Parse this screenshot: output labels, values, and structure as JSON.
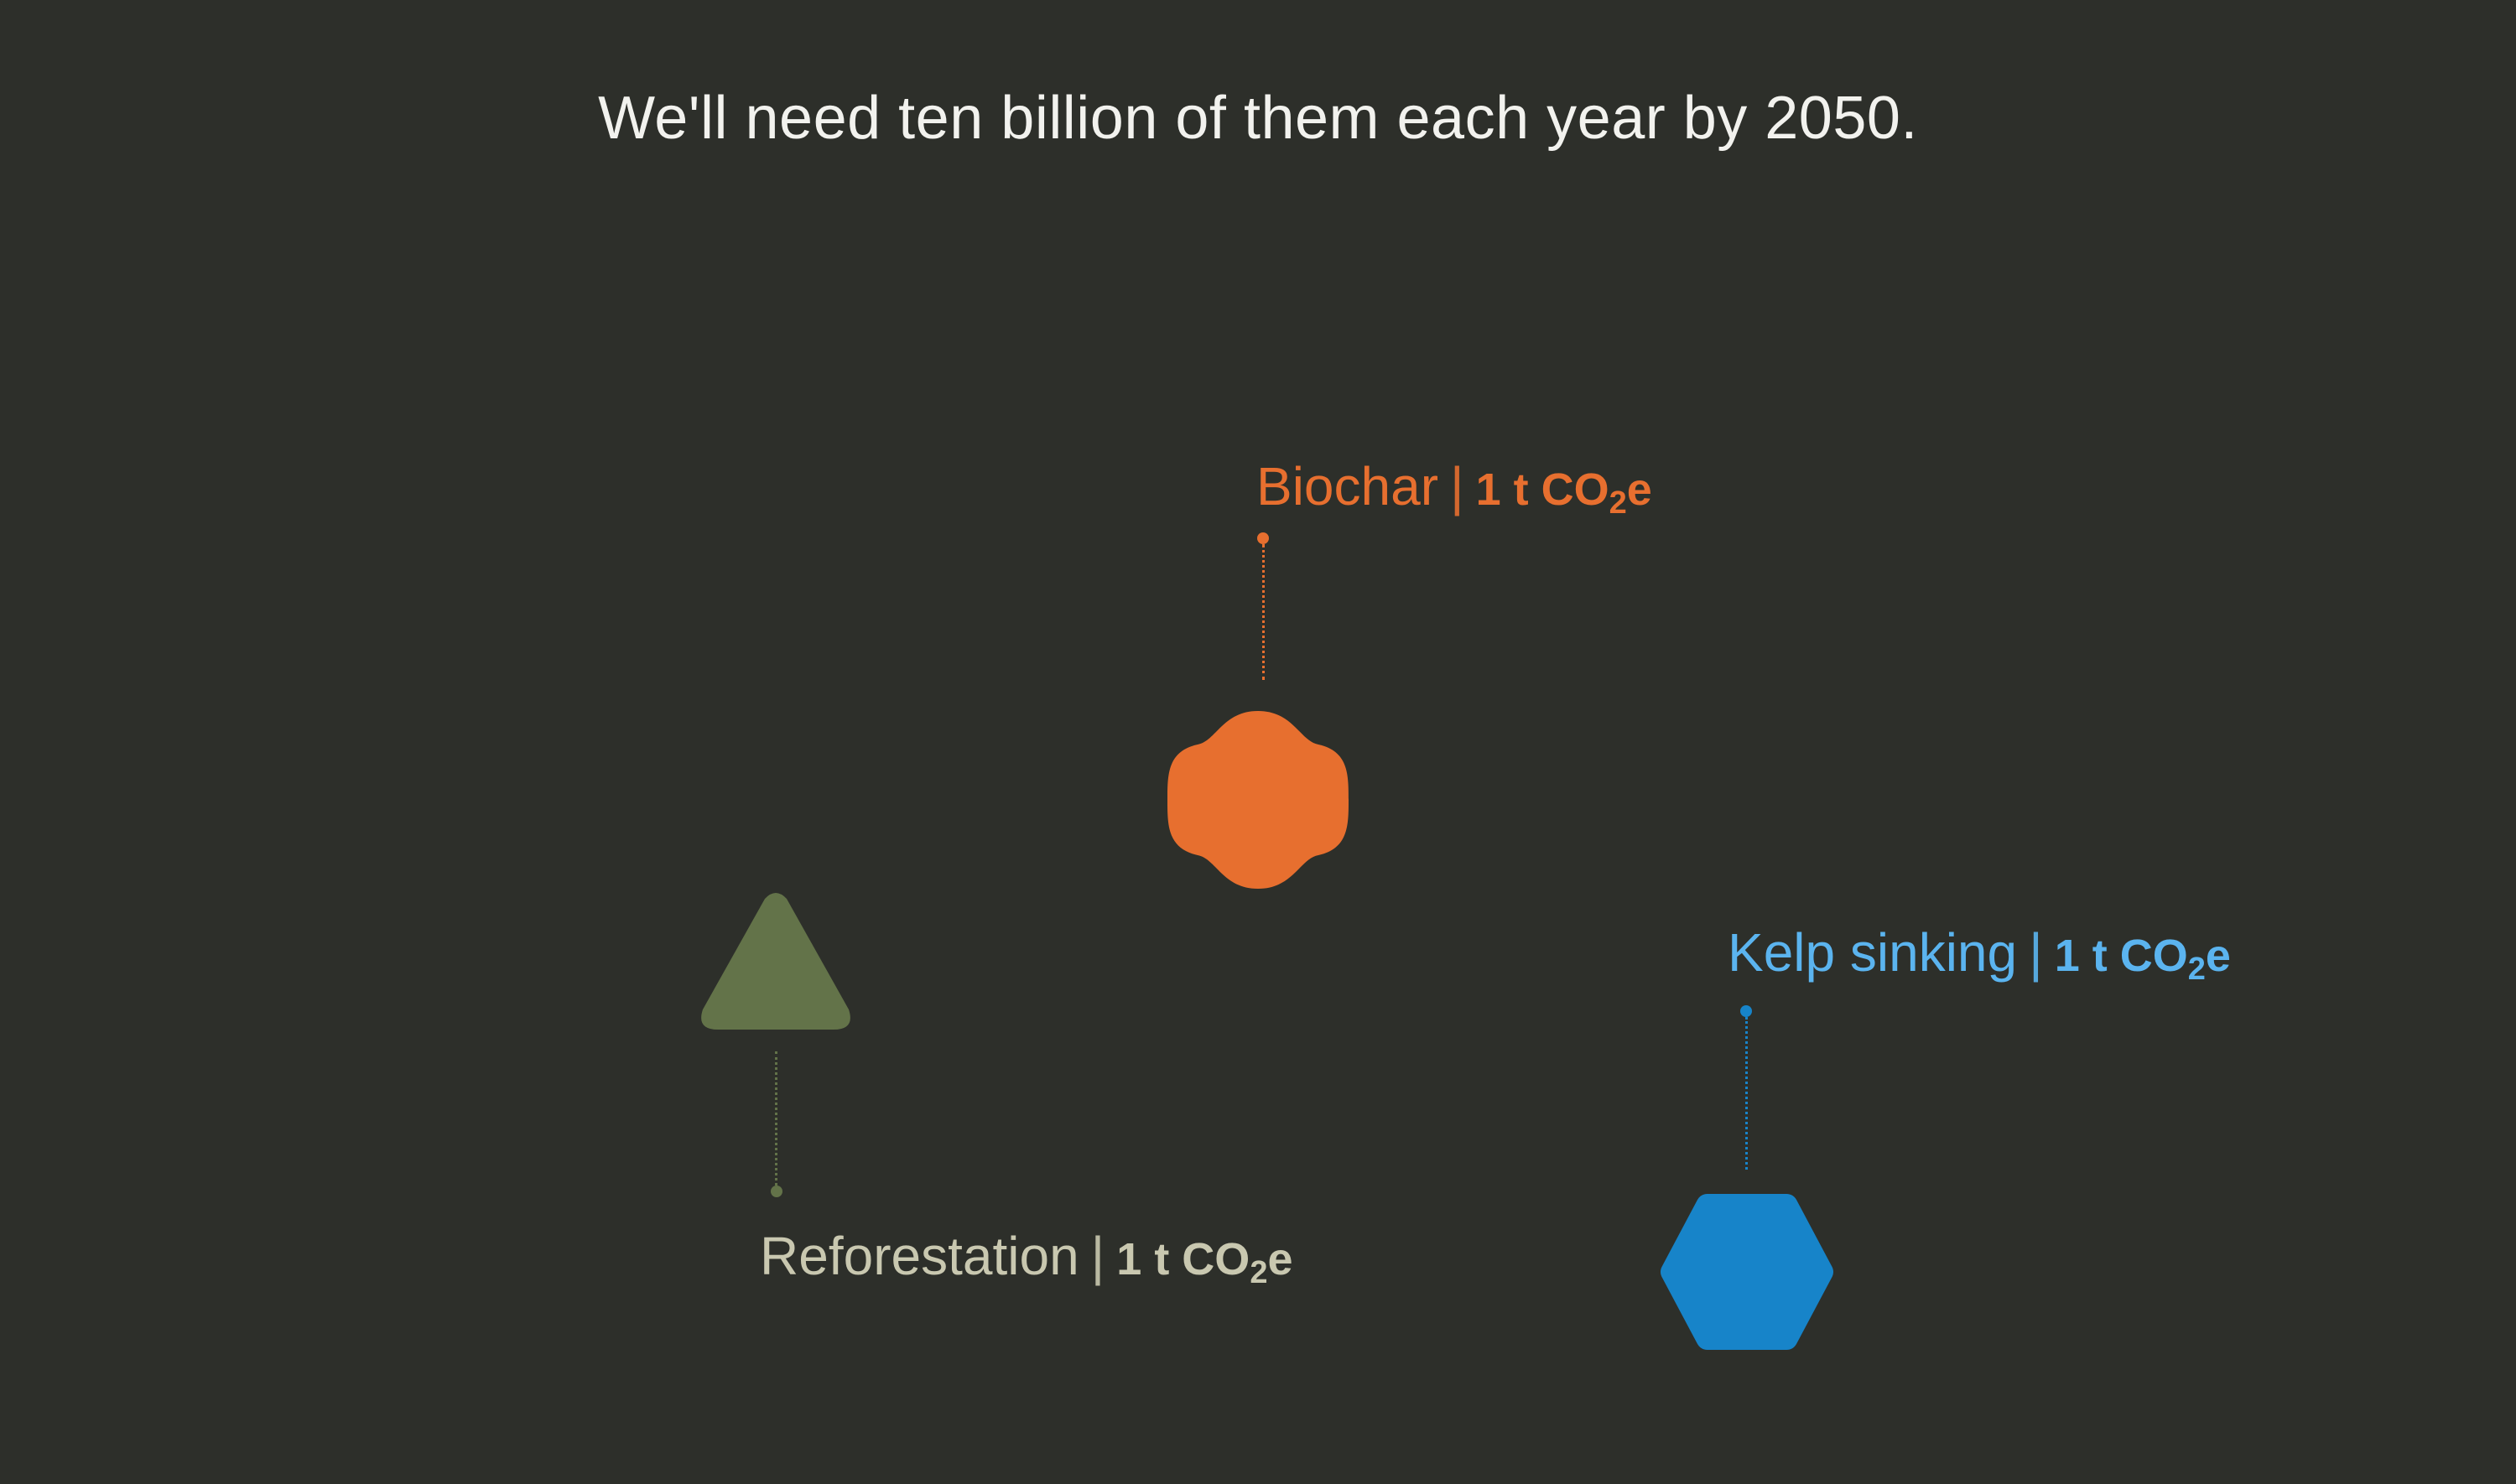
{
  "headline": "We'll need ten billion of them each year by 2050.",
  "items": {
    "biochar": {
      "name": "Biochar",
      "separator": "|",
      "amount_prefix": "1 t CO",
      "amount_sub": "2",
      "amount_suffix": "e",
      "color": "#e76f2f",
      "shape": "rounded-diamond"
    },
    "reforestation": {
      "name": "Reforestation",
      "separator": "|",
      "amount_prefix": "1 t CO",
      "amount_sub": "2",
      "amount_suffix": "e",
      "color": "#c9c8b0",
      "shape_color": "#637349",
      "shape": "triangle"
    },
    "kelp": {
      "name": "Kelp sinking",
      "separator": "|",
      "amount_prefix": "1 t CO",
      "amount_sub": "2",
      "amount_suffix": "e",
      "color": "#5bb4ef",
      "shape_color": "#1784c9",
      "shape": "hexagon"
    }
  }
}
